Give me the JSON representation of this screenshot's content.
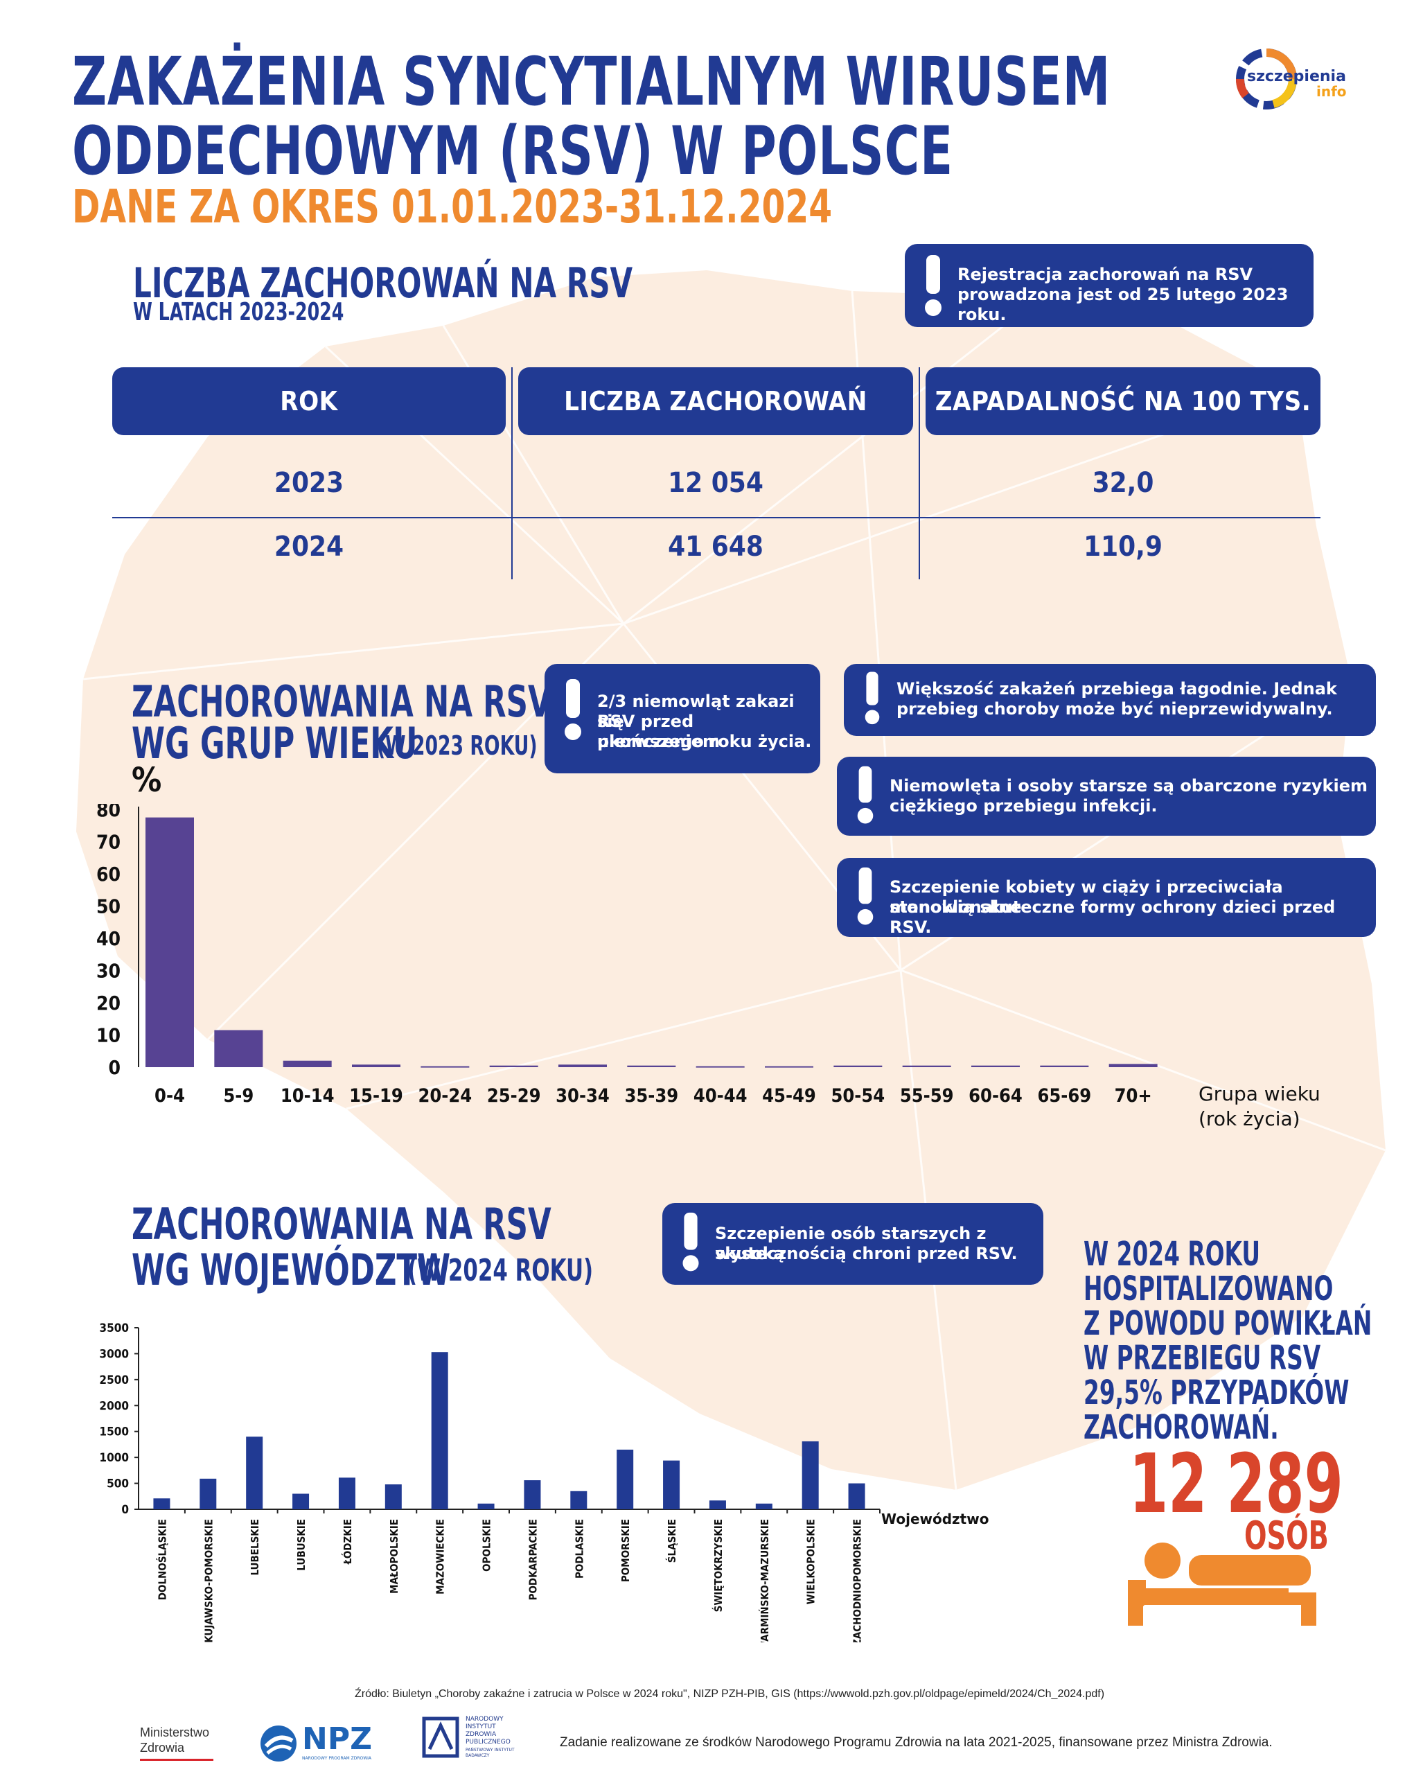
{
  "header": {
    "title_line1": "ZAKAŻENIA SYNCYTIALNYM WIRUSEM",
    "title_line2": "ODDECHOWYM (RSV) W POLSCE",
    "subtitle": "DANE ZA OKRES 01.01.2023-31.12.2024",
    "logo_text1": "szczepienia",
    "logo_text2": "info"
  },
  "section1": {
    "title": "LICZBA ZACHOROWAŃ NA RSV",
    "subtitle": "W LATACH 2023-2024",
    "note": "Rejestracja zachorowań na RSV prowadzona jest od 25 lutego 2023 roku.",
    "note_line1": "Rejestracja zachorowań na RSV",
    "note_line2": "prowadzona jest od 25 lutego 2023 roku.",
    "table": {
      "headers": [
        "ROK",
        "LICZBA ZACHOROWAŃ",
        "ZAPADALNOŚĆ NA 100 TYS."
      ],
      "rows": [
        [
          "2023",
          "12 054",
          "32,0"
        ],
        [
          "2024",
          "41 648",
          "110,9"
        ]
      ]
    }
  },
  "section2": {
    "title_line1": "ZACHOROWANIA NA RSV",
    "title_line2": "WG GRUP WIEKU",
    "title_suffix": "(W 2023 ROKU)",
    "note_infants_1": "2/3 niemowląt zakazi się",
    "note_infants_2": "RSV przed ukończeniem",
    "note_infants_3": "pierwszego roku życia.",
    "note_mild_1": "Większość zakażeń przebiega łagodnie.  Jednak",
    "note_mild_2": "przebieg choroby może być nieprzewidywalny.",
    "note_risk_1": "Niemowlęta i osoby starsze są obarczone ryzykiem",
    "note_risk_2": "ciężkiego przebiegu infekcji.",
    "note_vacc_1": "Szczepienie kobiety w ciąży i przeciwciała monoklonalne",
    "note_vacc_2": "stanowią skuteczne formy ochrony dzieci przed RSV.",
    "xlabel_1": "Grupa wieku",
    "xlabel_2": "(rok życia)"
  },
  "section3": {
    "title_line1": "ZACHOROWANIA NA RSV",
    "title_line2": "WG WOJEWÓDZTW",
    "title_suffix": "(W 2024 ROKU)",
    "note_1": "Szczepienie osób starszych z wysoką",
    "note_2": "skutecznością chroni przed RSV.",
    "xlabel": "Województwo",
    "hosp_1": "W 2024 ROKU",
    "hosp_2": "HOSPITALIZOWANO",
    "hosp_3": "Z POWODU POWIKŁAŃ",
    "hosp_4": "W PRZEBIEGU RSV",
    "hosp_5": "29,5% PRZYPADKÓW",
    "hosp_6": "ZACHOROWAŃ.",
    "hosp_number": "12 289",
    "hosp_unit": "OSÓB"
  },
  "footer": {
    "source": "Źródło: Biuletyn „Choroby zakaźne i zatrucia w Polsce w 2024 roku\", NIZP PZH-PIB, GIS (https://wwwold.pzh.gov.pl/oldpage/epimeld/2024/Ch_2024.pdf)",
    "ministry_1": "Ministerstwo",
    "ministry_2": "Zdrowia",
    "npz": "NPZ",
    "npz_sub": "NARODOWY PROGRAM ZDROWIA",
    "nizp_1": "NARODOWY",
    "nizp_2": "INSTYTUT",
    "nizp_3": "ZDROWIA",
    "nizp_4": "PUBLICZNEGO",
    "nizp_5": "PAŃSTWOWY INSTYTUT",
    "nizp_6": "BADAWCZY",
    "funding": "Zadanie realizowane ze środków Narodowego Programu Zdrowia na lata 2021-2025, finansowane przez Ministra Zdrowia."
  },
  "colors": {
    "navy": "#213a93",
    "orange": "#ef8a2f",
    "purple": "#574393",
    "red": "#d9452b"
  },
  "chart_data": [
    {
      "type": "bar",
      "title": "ZACHOROWANIA NA RSV WG GRUP WIEKU (W 2023 ROKU)",
      "xlabel": "Grupa wieku (rok życia)",
      "ylabel": "%",
      "ylim": [
        0,
        80
      ],
      "yticks": [
        0,
        10,
        20,
        30,
        40,
        50,
        60,
        70,
        80
      ],
      "categories": [
        "0-4",
        "5-9",
        "10-14",
        "15-19",
        "20-24",
        "25-29",
        "30-34",
        "35-39",
        "40-44",
        "45-49",
        "50-54",
        "55-59",
        "60-64",
        "65-69",
        "70+"
      ],
      "values": [
        77.5,
        11.5,
        2.0,
        0.8,
        0.3,
        0.5,
        0.8,
        0.5,
        0.3,
        0.3,
        0.5,
        0.5,
        0.5,
        0.5,
        1.0
      ]
    },
    {
      "type": "bar",
      "title": "ZACHOROWANIA NA RSV WG WOJEWÓDZTW (W 2024 ROKU)",
      "xlabel": "Województwo",
      "ylabel": "",
      "ylim": [
        0,
        3500
      ],
      "yticks": [
        0,
        500,
        1000,
        1500,
        2000,
        2500,
        3000,
        3500
      ],
      "categories": [
        "DOLNOŚLĄSKIE",
        "KUJAWSKO-POMORSKIE",
        "LUBELSKIE",
        "LUBUSKIE",
        "ŁÓDZKIE",
        "MAŁOPOLSKIE",
        "MAZOWIECKIE",
        "OPOLSKIE",
        "PODKARPACKIE",
        "PODLASKIE",
        "POMORSKIE",
        "ŚLĄSKIE",
        "ŚWIĘTOKRZYSKIE",
        "WARMIŃSKO-MAZURSKIE",
        "WIELKOPOLSKIE",
        "ZACHODNIOPOMORSKIE"
      ],
      "values": [
        210,
        590,
        1400,
        300,
        610,
        480,
        3030,
        110,
        560,
        350,
        1150,
        940,
        170,
        110,
        1310,
        500
      ]
    }
  ]
}
